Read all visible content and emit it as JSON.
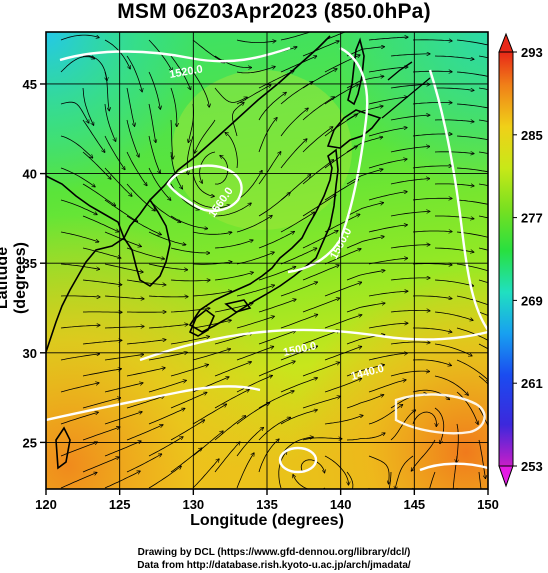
{
  "title": "MSM 06Z03Apr2023 (850.0hPa)",
  "x_axis_label": "Longitude (degrees)",
  "y_axis_label": "Latitude  (degrees)",
  "x_ticks": [
    "120",
    "125",
    "130",
    "135",
    "140",
    "145",
    "150"
  ],
  "y_ticks": [
    "25",
    "30",
    "35",
    "40",
    "45"
  ],
  "colorbar_ticks": [
    "293",
    "285",
    "277",
    "269",
    "261",
    "253"
  ],
  "contour_labels": [
    "1560.0",
    "1500.0",
    "1520.0",
    "1500.0",
    "1440.0"
  ],
  "credits": {
    "line1": "Drawing by DCL (https://www.gfd-dennou.org/library/dcl/)",
    "line2": "Data from http://database.rish.kyoto-u.ac.jp/arch/jmadata/"
  },
  "map": {
    "lon_range": [
      120,
      150
    ],
    "lat_range": [
      22.4,
      47.9
    ],
    "grid_lon": [
      120,
      125,
      130,
      135,
      140,
      145,
      150
    ],
    "grid_lat": [
      25,
      30,
      35,
      40,
      45
    ],
    "colorbar_range": [
      253,
      293
    ]
  }
}
